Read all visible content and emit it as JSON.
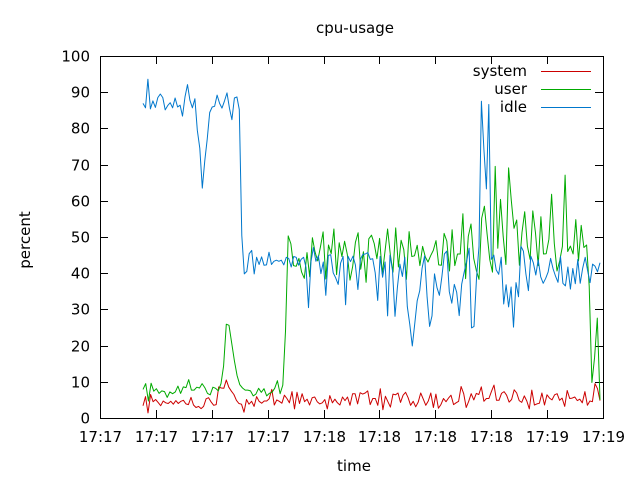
{
  "chart_data": {
    "type": "line",
    "title": "cpu-usage",
    "xlabel": "time",
    "ylabel": "percent",
    "ylim": [
      0,
      100
    ],
    "y_ticks": [
      0,
      10,
      20,
      30,
      40,
      50,
      60,
      70,
      80,
      90,
      100
    ],
    "x_tick_labels": [
      "17:17",
      "17:17",
      "17:17",
      "17:17",
      "17:18",
      "17:18",
      "17:18",
      "17:18",
      "17:19",
      "17:19"
    ],
    "legend_position": "top-right",
    "grid": false,
    "series": [
      {
        "name": "system",
        "color": "#cc0000",
        "values": [
          3.4,
          5.9,
          1.4,
          6.5,
          4.5,
          5.1,
          4.3,
          3.4,
          4.7,
          4.2,
          4,
          4.6,
          3.8,
          4.8,
          4,
          4.6,
          4.9,
          3.9,
          3.7,
          5.7,
          3.6,
          2.9,
          3.2,
          2.6,
          3.2,
          5.3,
          5.6,
          4.4,
          3.5,
          3.7,
          8.6,
          8.3,
          8.2,
          10.5,
          8.5,
          7.4,
          6.5,
          4.9,
          4,
          3.8,
          1.6,
          5.1,
          3.8,
          4.6,
          3.2,
          5.9,
          4.6,
          4.1,
          4.7,
          4.7,
          5.3,
          7.9,
          3.6,
          5,
          4.6,
          4.1,
          6.3,
          5.4,
          4.2,
          7.3,
          2.5,
          7.1,
          4,
          6.7,
          4.5,
          5.2,
          3.6,
          5.6,
          5.8,
          4.5,
          3.9,
          4.2,
          5.1,
          2.5,
          6.2,
          4.2,
          5.2,
          4.2,
          3.6,
          5.8,
          4.8,
          5.8,
          3.5,
          6.7,
          6.7,
          3.9,
          7,
          6.6,
          6.9,
          7.5,
          3.7,
          5.4,
          5.4,
          3.5,
          8.1,
          2.3,
          6,
          4.5,
          3,
          6.6,
          6.4,
          6.9,
          4.3,
          6.3,
          7.1,
          5.6,
          3.5,
          4.6,
          3.1,
          4.4,
          6.9,
          5.2,
          3.5,
          4.7,
          6.9,
          2.9,
          6.6,
          2.7,
          3.7,
          5.4,
          4.5,
          5.5,
          6.3,
          3.7,
          4.2,
          4.6,
          8.7,
          6.7,
          2.9,
          4.6,
          6.7,
          5,
          6.8,
          6.5,
          8.6,
          4.6,
          5.4,
          5.4,
          7.3,
          9.1,
          4.9,
          4.9,
          6.8,
          7.3,
          6.3,
          4.4,
          5.1,
          7.8,
          6.9,
          4.8,
          4.3,
          6.1,
          4.7,
          2.5,
          7.7,
          3.6,
          3.9,
          4.1,
          6.9,
          3.6,
          6.4,
          5.5,
          5,
          6.4,
          6.7,
          4.9,
          5.5,
          3.2,
          7.6,
          5.4,
          5.5,
          5.8,
          4.8,
          5.2,
          4.2,
          7.3,
          3.5,
          4.7,
          4.5,
          9.5,
          8.1,
          4.8
        ]
      },
      {
        "name": "user",
        "color": "#00aa00",
        "values": [
          7.9,
          9.5,
          4.7,
          9.6,
          7.4,
          8.1,
          6.8,
          7.5,
          7.3,
          5.7,
          7.2,
          6.7,
          7.2,
          8.8,
          6.8,
          8.6,
          8.4,
          10.6,
          7.7,
          7.7,
          8.5,
          8.3,
          9.5,
          8.4,
          6.8,
          6.4,
          8.5,
          8.2,
          7.5,
          9.5,
          14.4,
          25.9,
          25.6,
          20.7,
          15.8,
          11.7,
          9.2,
          8.3,
          7.7,
          7.7,
          7.5,
          6.1,
          6.6,
          8.2,
          7.1,
          8.1,
          6.1,
          6.8,
          7.1,
          8.2,
          10.3,
          6.7,
          9.1,
          24,
          50.3,
          48.1,
          42.1,
          41.9,
          44.1,
          40.3,
          38.6,
          45.7,
          39,
          49.8,
          45.9,
          43.4,
          47.2,
          51.4,
          38.4,
          47.8,
          45.4,
          52.2,
          39.6,
          48.4,
          44.6,
          48.8,
          45.2,
          38.1,
          41.9,
          48.5,
          51.2,
          41.1,
          45.9,
          37.5,
          49.5,
          50.5,
          48.2,
          44,
          49.6,
          39.8,
          45.8,
          52.2,
          45.2,
          40.3,
          52.5,
          41.7,
          49.1,
          46.5,
          38.3,
          51.5,
          44.6,
          44.8,
          47.7,
          42.1,
          47.4,
          44.5,
          43.1,
          44.8,
          46.3,
          49,
          42.3,
          42.2,
          51,
          48.9,
          40.6,
          52,
          42.1,
          45.3,
          45.3,
          56.4,
          38.5,
          50.2,
          53.6,
          44.1,
          40.8,
          38.3,
          55.2,
          58.5,
          50.8,
          43.7,
          40.3,
          69.5,
          46.9,
          60.4,
          50.1,
          42.4,
          69.1,
          60.1,
          52.4,
          54.7,
          42.2,
          51.3,
          57,
          47.5,
          43.8,
          57.2,
          51.1,
          42.1,
          55.6,
          45.3,
          45.4,
          49.4,
          61.8,
          48.2,
          40.6,
          43.4,
          47.4,
          67.1,
          46,
          47.5,
          45.3,
          54.8,
          43.4,
          53.2,
          47.1,
          47.8,
          36.4,
          9.8,
          16.8,
          27.6,
          5
        ]
      },
      {
        "name": "idle",
        "color": "#0077cc",
        "values": [
          86.9,
          85.7,
          93.6,
          85.4,
          87.6,
          85.8,
          88.5,
          89.5,
          88.5,
          85.1,
          86.3,
          87.1,
          85.7,
          88.4,
          85.9,
          86.4,
          83.4,
          88.7,
          92.1,
          87.8,
          85.7,
          88.2,
          79.5,
          74.5,
          63.5,
          71.1,
          77,
          84.4,
          85.9,
          86.1,
          89.2,
          86.9,
          85.6,
          87.6,
          89.8,
          85.5,
          82.4,
          88.4,
          88.7,
          85.2,
          50.4,
          39.8,
          40.5,
          45.4,
          46.3,
          39.8,
          44.4,
          42.4,
          44.5,
          42.2,
          42.3,
          45.8,
          42.4,
          43.3,
          43.6,
          43.3,
          43.6,
          42.3,
          44.4,
          44.1,
          41.7,
          44.6,
          44.4,
          42.2,
          43.8,
          44.4,
          41.6,
          30.5,
          43.2,
          47.1,
          43.3,
          44.8,
          39.9,
          43.1,
          33.9,
          44.9,
          45.1,
          40.1,
          38.7,
          36.9,
          42.8,
          44.6,
          31.3,
          44.7,
          43.2,
          44.7,
          42.3,
          35.5,
          43.9,
          45.2,
          45.3,
          45.7,
          43.8,
          44,
          40.1,
          32.5,
          44.6,
          38.9,
          43.1,
          28.2,
          45,
          40.7,
          28.1,
          36.1,
          42.5,
          39.1,
          44.4,
          30.8,
          25.8,
          19.9,
          25.9,
          32.4,
          35.1,
          41.4,
          44.8,
          33.4,
          25.3,
          28.2,
          39.8,
          36,
          33.9,
          39.1,
          45.3,
          46.1,
          34.9,
          31.7,
          36.9,
          34.7,
          28.3,
          37,
          40.2,
          43.2,
          46.9,
          24.9,
          25.3,
          38.6,
          47.4,
          87.5,
          74.2,
          63.3,
          86.6,
          43.8,
          45,
          40.9,
          39.7,
          44.4,
          31.5,
          36.8,
          30.7,
          36.2,
          25.1,
          37.4,
          33.5,
          47.4,
          46.1,
          39.8,
          35.2,
          44.7,
          42.9,
          39.5,
          43.7,
          39,
          37.2,
          38.6,
          40.3,
          44.1,
          41.2,
          39.2,
          37.5,
          44.6,
          37.2,
          36.5,
          41.7,
          35.6,
          41.3,
          37.1,
          43.8,
          37.2,
          41.4,
          44.4,
          40.7,
          37.4,
          42.5,
          41.9,
          40.4,
          42.9
        ]
      }
    ]
  }
}
